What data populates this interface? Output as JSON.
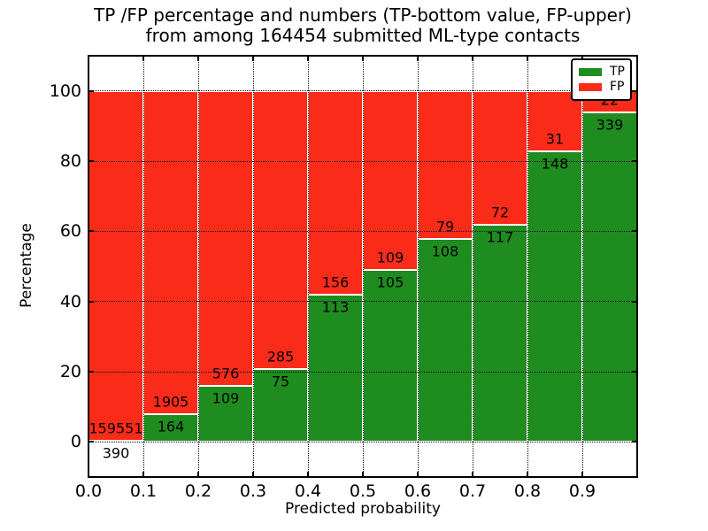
{
  "title": {
    "line1": "TP /FP percentage and numbers (TP-bottom value, FP-upper)",
    "line2": "from among 164454 submitted ML-type contacts"
  },
  "axes": {
    "xlabel": "Predicted probability",
    "ylabel": "Percentage"
  },
  "legend": {
    "position": "upper right",
    "items": [
      {
        "label": "TP",
        "color": "#1e8c1e"
      },
      {
        "label": "FP",
        "color": "#fb2b1a"
      }
    ]
  },
  "chart_data": {
    "type": "bar",
    "stacked": true,
    "normalized": "each bar scaled to 100%",
    "title": "TP /FP percentage and numbers (TP-bottom value, FP-upper)\nfrom among 164454 submitted ML-type contacts",
    "xlabel": "Predicted probability",
    "ylabel": "Percentage",
    "total_contacts": 164454,
    "categories": [
      "0.0-0.1",
      "0.1-0.2",
      "0.2-0.3",
      "0.3-0.4",
      "0.4-0.5",
      "0.5-0.6",
      "0.6-0.7",
      "0.7-0.8",
      "0.8-0.9",
      "0.9-1.0"
    ],
    "bin_edges": [
      0.0,
      0.1,
      0.2,
      0.3,
      0.4,
      0.5,
      0.6,
      0.7,
      0.8,
      0.9,
      1.0
    ],
    "series": [
      {
        "name": "TP",
        "color": "#1e8c1e",
        "values": [
          390,
          164,
          109,
          75,
          113,
          105,
          108,
          117,
          148,
          339
        ]
      },
      {
        "name": "FP",
        "color": "#fb2b1a",
        "values": [
          159551,
          1905,
          576,
          285,
          156,
          109,
          79,
          72,
          31,
          22
        ]
      }
    ],
    "xticks": [
      "0.0",
      "0.1",
      "0.2",
      "0.3",
      "0.4",
      "0.5",
      "0.6",
      "0.7",
      "0.8",
      "0.9"
    ],
    "yticks": [
      0,
      20,
      40,
      60,
      80,
      100
    ],
    "xlim": [
      0.0,
      1.0
    ],
    "ylim": [
      -10,
      110
    ],
    "grid": true,
    "legend_position": "upper right"
  }
}
